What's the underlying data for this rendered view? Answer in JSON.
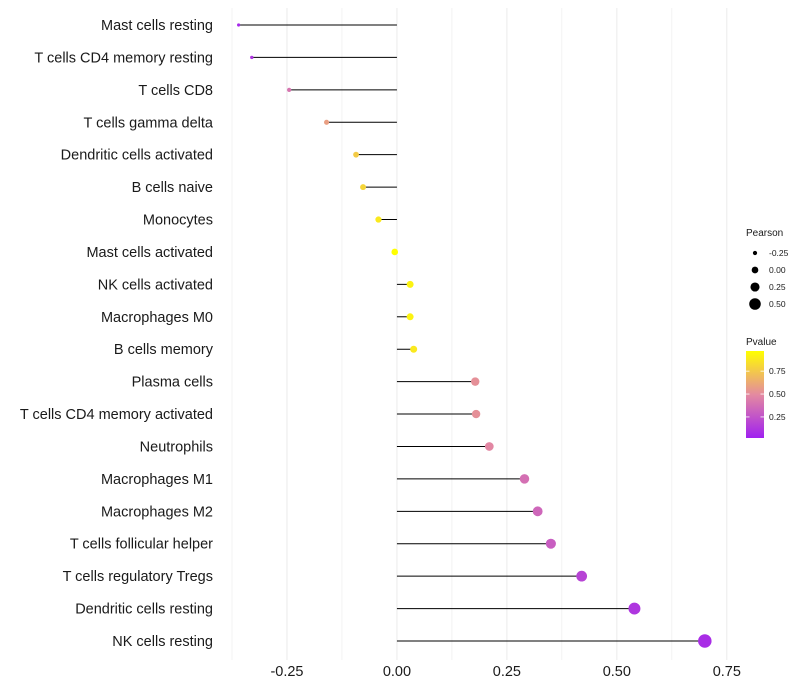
{
  "chart_data": {
    "type": "lollipop",
    "categories": [
      "Mast cells resting",
      "T cells CD4 memory resting",
      "T cells CD8",
      "T cells gamma delta",
      "Dendritic cells activated",
      "B cells naive",
      "Monocytes",
      "Mast cells activated",
      "NK cells activated",
      "Macrophages M0",
      "B cells memory",
      "Plasma cells",
      "T cells CD4 memory activated",
      "Neutrophils",
      "Macrophages M1",
      "Macrophages M2",
      "T cells follicular helper",
      "T cells regulatory  Tregs",
      "Dendritic cells resting",
      "NK cells resting"
    ],
    "pearson": [
      -0.36,
      -0.33,
      -0.245,
      -0.16,
      -0.093,
      -0.077,
      -0.042,
      -0.005,
      0.03,
      0.03,
      0.038,
      0.178,
      0.18,
      0.21,
      0.29,
      0.32,
      0.35,
      0.42,
      0.54,
      0.7
    ],
    "pvalue": [
      0.06,
      0.12,
      0.4,
      0.58,
      0.76,
      0.8,
      0.88,
      0.98,
      0.92,
      0.92,
      0.88,
      0.52,
      0.52,
      0.48,
      0.38,
      0.34,
      0.3,
      0.18,
      0.12,
      0.08
    ],
    "x_ticks": [
      "-0.25",
      "0.00",
      "0.25",
      "0.50",
      "0.75"
    ],
    "x_tick_values": [
      -0.25,
      0,
      0.25,
      0.5,
      0.75
    ],
    "xlim": [
      -0.375,
      0.78
    ],
    "size_legend": {
      "title": "Pearson",
      "labels": [
        "-0.25",
        "0.00",
        "0.25",
        "0.50"
      ],
      "values": [
        -0.25,
        0,
        0.25,
        0.5
      ]
    },
    "color_legend": {
      "title": "Pvalue",
      "labels": [
        "0.75",
        "0.50",
        "0.25"
      ],
      "values": [
        0.75,
        0.5,
        0.25
      ],
      "range": [
        0.02,
        0.97
      ],
      "low_color": "#a020f0",
      "mid_color": "#e48aa0",
      "high_color": "#ffff00"
    },
    "stem_color": "#000000",
    "grid_color": "#ebebeb"
  }
}
